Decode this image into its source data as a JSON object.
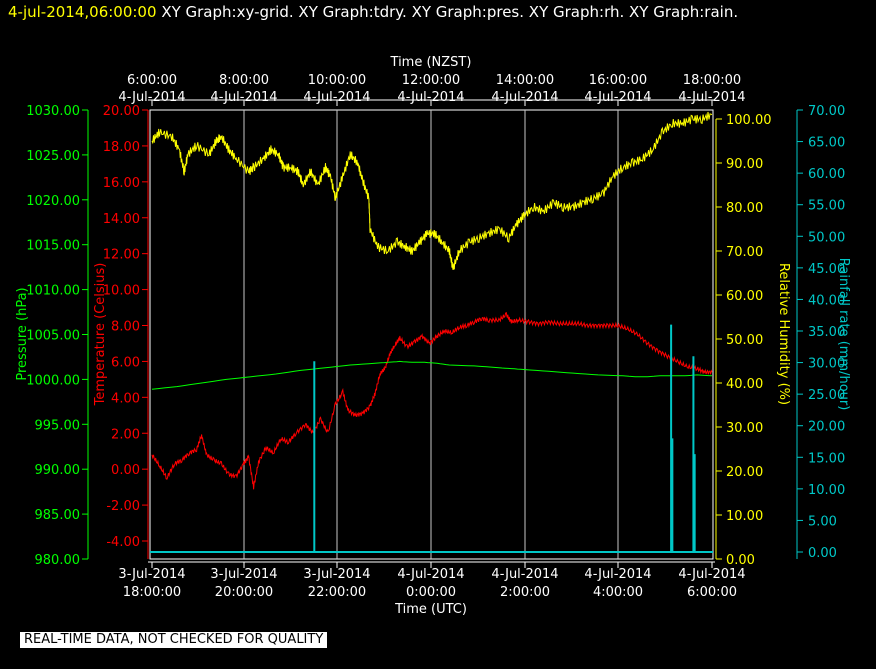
{
  "header": {
    "timestamp": "4-jul-2014,06:00:00",
    "graphs": [
      "XY Graph:xy-grid.",
      "XY Graph:tdry.",
      "XY Graph:pres.",
      "XY Graph:rh.",
      "XY Graph:rain."
    ]
  },
  "footer": {
    "note": "REAL-TIME DATA, NOT CHECKED FOR QUALITY"
  },
  "chart_data": {
    "type": "line",
    "grid": true,
    "x_top": {
      "label": "Time (NZST)",
      "ticks": [
        {
          "time": "6:00:00",
          "date": "4-Jul-2014"
        },
        {
          "time": "8:00:00",
          "date": "4-Jul-2014"
        },
        {
          "time": "10:00:00",
          "date": "4-Jul-2014"
        },
        {
          "time": "12:00:00",
          "date": "4-Jul-2014"
        },
        {
          "time": "14:00:00",
          "date": "4-Jul-2014"
        },
        {
          "time": "16:00:00",
          "date": "4-Jul-2014"
        },
        {
          "time": "18:00:00",
          "date": "4-Jul-2014"
        }
      ]
    },
    "x_bottom": {
      "label": "Time (UTC)",
      "range": [
        "3-Jul-2014 18:00",
        "4-Jul-2014 06:00"
      ],
      "ticks": [
        {
          "date": "3-Jul-2014",
          "time": "18:00:00"
        },
        {
          "date": "3-Jul-2014",
          "time": "20:00:00"
        },
        {
          "date": "3-Jul-2014",
          "time": "22:00:00"
        },
        {
          "date": "4-Jul-2014",
          "time": "0:00:00"
        },
        {
          "date": "4-Jul-2014",
          "time": "2:00:00"
        },
        {
          "date": "4-Jul-2014",
          "time": "4:00:00"
        },
        {
          "date": "4-Jul-2014",
          "time": "6:00:00"
        }
      ]
    },
    "y_axes": {
      "pressure": {
        "label": "Pressure (hPa)",
        "color": "#00ff00",
        "min": 980,
        "max": 1030,
        "ticks": [
          "1030.00",
          "1025.00",
          "1020.00",
          "1015.00",
          "1010.00",
          "1005.00",
          "1000.00",
          "995.00",
          "990.00",
          "985.00",
          "980.00"
        ]
      },
      "temperature": {
        "label": "Temperature (Celsius)",
        "color": "#ff0000",
        "min": -5,
        "max": 20,
        "ticks": [
          "20.00",
          "18.00",
          "16.00",
          "14.00",
          "12.00",
          "10.00",
          "8.00",
          "6.00",
          "4.00",
          "2.00",
          "0.00",
          "-2.00",
          "-4.00"
        ]
      },
      "humidity": {
        "label": "Relative Humidity (%)",
        "color": "#ffff00",
        "min": 0,
        "max": 100,
        "ticks": [
          "100.00",
          "90.00",
          "80.00",
          "70.00",
          "60.00",
          "50.00",
          "40.00",
          "30.00",
          "20.00",
          "10.00",
          "0.00"
        ]
      },
      "rainfall": {
        "label": "Rainfall rate (mm/hour)",
        "color": "#00c8c8",
        "min": 0,
        "max": 70,
        "ticks": [
          "70.00",
          "65.00",
          "60.00",
          "55.00",
          "50.00",
          "45.00",
          "40.00",
          "35.00",
          "30.00",
          "25.00",
          "20.00",
          "15.00",
          "10.00",
          "5.00",
          "0.00"
        ]
      }
    },
    "series": [
      {
        "key": "humidity",
        "axis": "humidity",
        "color": "#ffff00",
        "points": [
          [
            0,
            95
          ],
          [
            0.3,
            97
          ],
          [
            0.8,
            96
          ],
          [
            1.1,
            93
          ],
          [
            1.3,
            88
          ],
          [
            1.45,
            92
          ],
          [
            1.8,
            94
          ],
          [
            2.3,
            92
          ],
          [
            2.6,
            95
          ],
          [
            2.8,
            96
          ],
          [
            3.1,
            93
          ],
          [
            3.4,
            91
          ],
          [
            3.9,
            88
          ],
          [
            4.1,
            89
          ],
          [
            4.5,
            91
          ],
          [
            4.8,
            93
          ],
          [
            5.1,
            92
          ],
          [
            5.3,
            89
          ],
          [
            5.6,
            89
          ],
          [
            5.9,
            88
          ],
          [
            6.1,
            85
          ],
          [
            6.4,
            88
          ],
          [
            6.7,
            85
          ],
          [
            7.0,
            89
          ],
          [
            7.2,
            87
          ],
          [
            7.4,
            82
          ],
          [
            7.7,
            87
          ],
          [
            8.0,
            92
          ],
          [
            8.3,
            90
          ],
          [
            8.5,
            86
          ],
          [
            8.75,
            82
          ],
          [
            8.8,
            75
          ],
          [
            9.1,
            71
          ],
          [
            9.5,
            70
          ],
          [
            9.9,
            72
          ],
          [
            10.2,
            71
          ],
          [
            10.5,
            70
          ],
          [
            10.8,
            72
          ],
          [
            11.1,
            74
          ],
          [
            11.4,
            74
          ],
          [
            11.7,
            72
          ],
          [
            12.0,
            70
          ],
          [
            12.15,
            66
          ],
          [
            12.4,
            70
          ],
          [
            12.8,
            72
          ],
          [
            13.2,
            73
          ],
          [
            13.6,
            74
          ],
          [
            14.0,
            75
          ],
          [
            14.4,
            73
          ],
          [
            14.7,
            76
          ],
          [
            15.0,
            78
          ],
          [
            15.4,
            80
          ],
          [
            15.8,
            79
          ],
          [
            16.2,
            81
          ],
          [
            16.6,
            80
          ],
          [
            17.0,
            80
          ],
          [
            17.4,
            81
          ],
          [
            17.8,
            82
          ],
          [
            18.2,
            83
          ],
          [
            18.6,
            87
          ],
          [
            19.0,
            89
          ],
          [
            19.4,
            90
          ],
          [
            19.8,
            91
          ],
          [
            20.2,
            93
          ],
          [
            20.6,
            97
          ],
          [
            21.0,
            99
          ],
          [
            21.4,
            99
          ],
          [
            21.8,
            100
          ],
          [
            22.2,
            100
          ],
          [
            22.6,
            101
          ]
        ]
      },
      {
        "key": "temperature",
        "axis": "temperature",
        "color": "#ff0000",
        "points": [
          [
            0,
            0.8
          ],
          [
            0.3,
            0.2
          ],
          [
            0.6,
            -0.5
          ],
          [
            0.9,
            0.3
          ],
          [
            1.2,
            0.5
          ],
          [
            1.5,
            0.9
          ],
          [
            1.8,
            1.1
          ],
          [
            2.0,
            1.9
          ],
          [
            2.2,
            0.8
          ],
          [
            2.5,
            0.5
          ],
          [
            2.8,
            0.3
          ],
          [
            3.1,
            -0.3
          ],
          [
            3.4,
            -0.4
          ],
          [
            3.7,
            0.3
          ],
          [
            3.9,
            0.7
          ],
          [
            4.1,
            -1.0
          ],
          [
            4.3,
            0.4
          ],
          [
            4.6,
            1.2
          ],
          [
            4.9,
            0.9
          ],
          [
            5.2,
            1.7
          ],
          [
            5.5,
            1.5
          ],
          [
            5.8,
            2.0
          ],
          [
            6.2,
            2.5
          ],
          [
            6.5,
            2.0
          ],
          [
            6.8,
            2.8
          ],
          [
            7.1,
            2.0
          ],
          [
            7.4,
            3.6
          ],
          [
            7.7,
            4.3
          ],
          [
            7.9,
            3.3
          ],
          [
            8.2,
            3.0
          ],
          [
            8.5,
            3.1
          ],
          [
            8.8,
            3.5
          ],
          [
            9.0,
            4.2
          ],
          [
            9.2,
            5.3
          ],
          [
            9.4,
            5.6
          ],
          [
            9.6,
            6.4
          ],
          [
            9.8,
            6.9
          ],
          [
            10.0,
            7.3
          ],
          [
            10.3,
            6.8
          ],
          [
            10.6,
            7.1
          ],
          [
            10.9,
            7.4
          ],
          [
            11.2,
            7.0
          ],
          [
            11.5,
            7.4
          ],
          [
            11.8,
            7.7
          ],
          [
            12.1,
            7.6
          ],
          [
            12.4,
            7.9
          ],
          [
            12.7,
            8.0
          ],
          [
            13.0,
            8.2
          ],
          [
            13.3,
            8.4
          ],
          [
            13.6,
            8.3
          ],
          [
            14.0,
            8.3
          ],
          [
            14.3,
            8.6
          ],
          [
            14.5,
            8.2
          ],
          [
            14.8,
            8.3
          ],
          [
            15.2,
            8.2
          ],
          [
            15.6,
            8.1
          ],
          [
            16.0,
            8.2
          ],
          [
            16.4,
            8.1
          ],
          [
            16.8,
            8.1
          ],
          [
            17.2,
            8.1
          ],
          [
            17.6,
            8.0
          ],
          [
            18.0,
            8.0
          ],
          [
            18.4,
            8.0
          ],
          [
            18.8,
            8.0
          ],
          [
            19.2,
            7.8
          ],
          [
            19.6,
            7.5
          ],
          [
            20.0,
            7.0
          ],
          [
            20.4,
            6.6
          ],
          [
            20.8,
            6.3
          ],
          [
            21.2,
            6.0
          ],
          [
            21.6,
            5.7
          ],
          [
            22.0,
            5.6
          ],
          [
            22.3,
            5.4
          ],
          [
            22.6,
            5.4
          ]
        ]
      },
      {
        "key": "pressure",
        "axis": "pressure",
        "color": "#00ff00",
        "points": [
          [
            0,
            998.9
          ],
          [
            1.0,
            999.2
          ],
          [
            2.0,
            999.6
          ],
          [
            3.0,
            1000.0
          ],
          [
            4.0,
            1000.3
          ],
          [
            5.0,
            1000.6
          ],
          [
            6.0,
            1001.0
          ],
          [
            7.0,
            1001.3
          ],
          [
            8.0,
            1001.6
          ],
          [
            9.0,
            1001.8
          ],
          [
            9.5,
            1001.9
          ],
          [
            10.0,
            1002.0
          ],
          [
            10.5,
            1001.9
          ],
          [
            11.0,
            1001.9
          ],
          [
            11.5,
            1001.8
          ],
          [
            12.0,
            1001.6
          ],
          [
            13.0,
            1001.5
          ],
          [
            14.0,
            1001.3
          ],
          [
            14.5,
            1001.2
          ],
          [
            15.0,
            1001.1
          ],
          [
            16.0,
            1000.9
          ],
          [
            17.0,
            1000.7
          ],
          [
            18.0,
            1000.5
          ],
          [
            19.0,
            1000.4
          ],
          [
            19.5,
            1000.3
          ],
          [
            20.0,
            1000.3
          ],
          [
            20.5,
            1000.4
          ],
          [
            21.0,
            1000.4
          ],
          [
            21.5,
            1000.4
          ],
          [
            22.0,
            1000.5
          ],
          [
            22.6,
            1000.4
          ]
        ]
      }
    ],
    "rainfall_bars": [
      {
        "x": 6.55,
        "value": 30.2
      },
      {
        "x": 20.95,
        "value": 36.0
      },
      {
        "x": 21.0,
        "value": 18.0
      },
      {
        "x": 21.85,
        "value": 31.0
      },
      {
        "x": 21.9,
        "value": 15.5
      }
    ],
    "x_hours_range": [
      0,
      22.6
    ]
  }
}
